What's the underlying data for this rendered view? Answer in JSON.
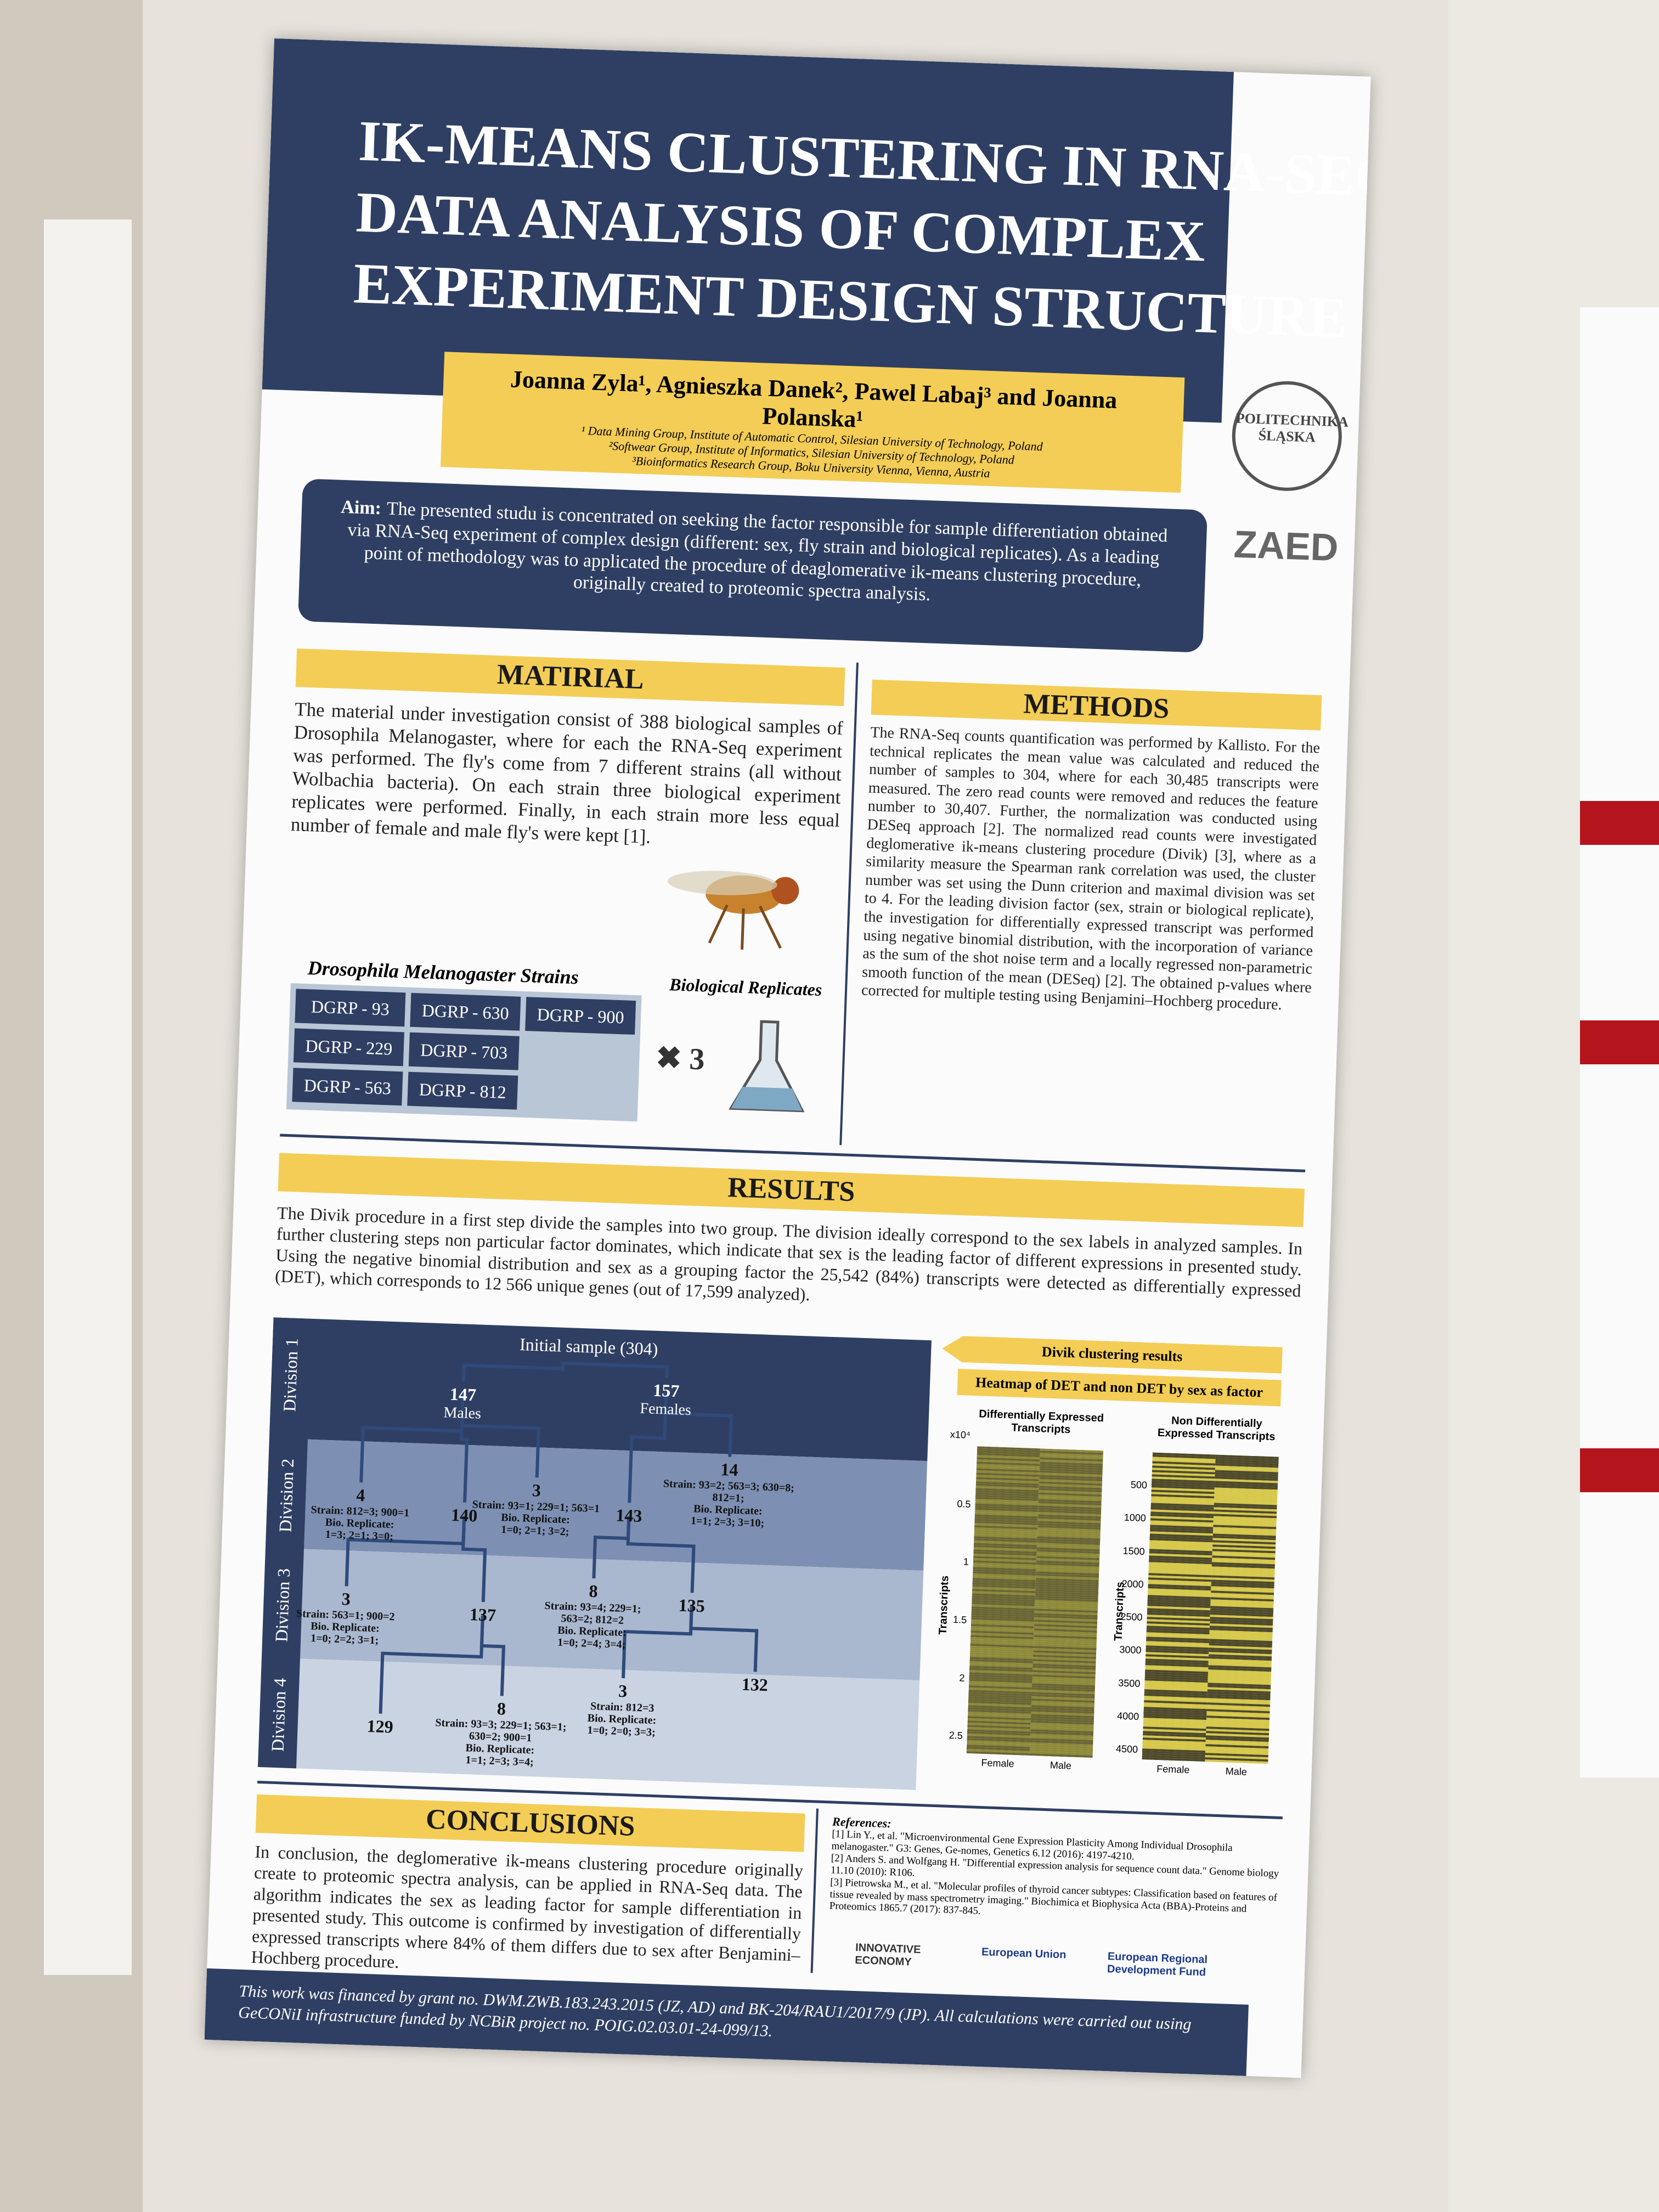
{
  "header": {
    "title": [
      "IK-MEANS CLUSTERING IN RNA-SEQ",
      "DATA ANALYSIS OF COMPLEX",
      "EXPERIMENT DESIGN STRUCTURE"
    ],
    "authors": "Joanna Zyla¹, Agnieszka Danek², Pawel Labaj³ and Joanna Polanska¹",
    "affiliations": [
      "¹ Data Mining Group, Institute of Automatic Control, Silesian University of Technology, Poland",
      "²Softwear Group, Institute of Informatics, Silesian University of Technology, Poland",
      "³Bioinformatics Research Group, Boku University Vienna, Vienna, Austria"
    ],
    "logos": [
      "POLITECHNIKA",
      "ŚLĄSKA",
      "ZAED"
    ]
  },
  "aim": {
    "label": "Aim:",
    "text": "The presented studu is concentrated on seeking the factor responsible for sample differentiation obtained via RNA-Seq experiment of complex design (different: sex, fly strain and biological replicates). As a leading point of methodology was to applicated the procedure of deaglomerative ik-means clustering procedure, originally created to proteomic spectra analysis."
  },
  "material": {
    "heading": "MATIRIAL",
    "text": "The material under investigation consist of 388 biological samples of Drosophila Melanogaster, where for each the RNA-Seq experiment was performed. The fly's come from 7 different strains (all without Wolbachia bacteria). On each strain three biological experiment replicates were performed. Finally, in each strain more less equal number of female and male fly's were kept [1].",
    "strains_title": "Drosophila Melanogaster Strains",
    "strains": [
      "DGRP - 93",
      "DGRP - 630",
      "DGRP - 900",
      "DGRP - 229",
      "DGRP - 703",
      "DGRP - 563",
      "DGRP - 812"
    ],
    "replicates_title": "Biological Replicates",
    "replicates": "✖ 3"
  },
  "methods": {
    "heading": "METHODS",
    "text": "The RNA-Seq counts quantification was performed by Kallisto. For the technical replicates the mean value was calculated and reduced the number of samples to 304, where for each 30,485 transcripts were measured. The zero read counts were removed and reduces the feature number to 30,407. Further, the normalization was conducted using DESeq approach [2]. The normalized read counts were investigated deglomerative ik-means clustering procedure (Divik) [3], where as a similarity measure the Spearman rank correlation was used, the cluster number was set using the Dunn criterion and maximal division was set to 4. For the leading division factor (sex, strain or biological replicate), the investigation for differentially expressed transcript was performed using negative binomial distribution, with the incorporation of variance as the sum of the shot noise term and a locally regressed non-parametric smooth function of the mean (DESeq) [2]. The obtained p-values where corrected for multiple testing using Benjamini–Hochberg procedure."
  },
  "results": {
    "heading": "RESULTS",
    "text": "The Divik procedure in a first step divide the samples into two group. The division ideally correspond to the sex labels in analyzed samples. In further clustering steps non particular factor dominates, which indicate that sex is the leading factor of different expressions in presented study. Using the negative binomial distribution and sex as a grouping factor the 25,542 (84%) transcripts were detected as differentially expressed (DET), which corresponds to 12 566 unique genes (out of 17,599 analyzed).",
    "tree": {
      "root": "Initial sample (304)",
      "divisions": [
        "Division 1",
        "Division 2",
        "Division 3",
        "Division 4"
      ],
      "nodes": [
        {
          "count": "147",
          "label": "Males"
        },
        {
          "count": "157",
          "label": "Females"
        },
        {
          "count": "4",
          "details": [
            "Strain: 812=3; 900=1",
            "Bio. Replicate:",
            "1=3; 2=1; 3=0;"
          ]
        },
        {
          "count": "140"
        },
        {
          "count": "3",
          "details": [
            "Strain: 93=1; 229=1; 563=1",
            "Bio. Replicate:",
            "1=0; 2=1; 3=2;"
          ]
        },
        {
          "count": "143"
        },
        {
          "count": "14",
          "details": [
            "Strain: 93=2; 563=3; 630=8; 812=1;",
            "Bio. Replicate:",
            "1=1; 2=3; 3=10;"
          ]
        },
        {
          "count": "3",
          "details": [
            "Strain: 563=1; 900=2",
            "Bio. Replicate:",
            "1=0; 2=2; 3=1;"
          ]
        },
        {
          "count": "137"
        },
        {
          "count": "8",
          "details": [
            "Strain: 93=4; 229=1;",
            "563=2; 812=2",
            "Bio. Replicate:",
            "1=0; 2=4; 3=4;"
          ]
        },
        {
          "count": "135"
        },
        {
          "count": "129"
        },
        {
          "count": "8",
          "details": [
            "Strain: 93=3; 229=1; 563=1;",
            "630=2; 900=1",
            "Bio. Replicate:",
            "1=1; 2=3; 3=4;"
          ]
        },
        {
          "count": "3",
          "details": [
            "Strain: 812=3",
            "Bio. Replicate:",
            "1=0; 2=0; 3=3;"
          ]
        },
        {
          "count": "132"
        }
      ]
    },
    "arrows": [
      "Divik clustering results",
      "Heatmap of DET and non DET by sex as factor"
    ],
    "heatmaps": [
      {
        "title": "Differentially Expressed Transcripts",
        "axis": "Transcripts",
        "multiplier": "x10⁴",
        "ticks": [
          "0.5",
          "1",
          "1.5",
          "2",
          "2.5"
        ],
        "groups": [
          "Female",
          "Male"
        ]
      },
      {
        "title": "Non Differentially Expressed Transcripts",
        "axis": "Transcripts",
        "ticks": [
          "500",
          "1000",
          "1500",
          "2000",
          "2500",
          "3000",
          "3500",
          "4000",
          "4500"
        ],
        "groups": [
          "Female",
          "Male"
        ]
      }
    ]
  },
  "conclusions": {
    "heading": "CONCLUSIONS",
    "text": "In conclusion, the deglomerative ik-means clustering procedure originally create to proteomic spectra analysis, can be applied in RNA-Seq data. The algorithm indicates the sex as leading factor for sample differentiation in presented study. This outcome is confirmed by investigation of differentially expressed transcripts where 84% of them differs due to sex after Benjamini–Hochberg procedure."
  },
  "references": {
    "heading": "References:",
    "items": [
      "[1] Lin Y., et al. \"Microenvironmental Gene Expression Plasticity Among Individual Drosophila melanogaster.\" G3: Genes, Ge-nomes, Genetics 6.12 (2016): 4197-4210.",
      "[2] Anders S. and Wolfgang H. \"Differential expression analysis for sequence count data.\" Genome biology 11.10 (2010): R106.",
      "[3] Pietrowska M., et al. \"Molecular profiles of thyroid cancer subtypes: Classification based on features of tissue revealed by mass spectrometry imaging.\" Biochimica et Biophysica Acta (BBA)-Proteins and Proteomics 1865.7 (2017): 837-845."
    ]
  },
  "sponsors": [
    "INNOVATIVE ECONOMY",
    "European Union",
    "European Regional Development Fund"
  ],
  "funding": "This work was financed by grant no. DWM.ZWB.183.243.2015 (JZ, AD) and BK-204/RAU1/2017/9 (JP). All calculations were carried out using GeCONiI infrastructure funded by NCBiR project no. POIG.02.03.01-24-099/13."
}
